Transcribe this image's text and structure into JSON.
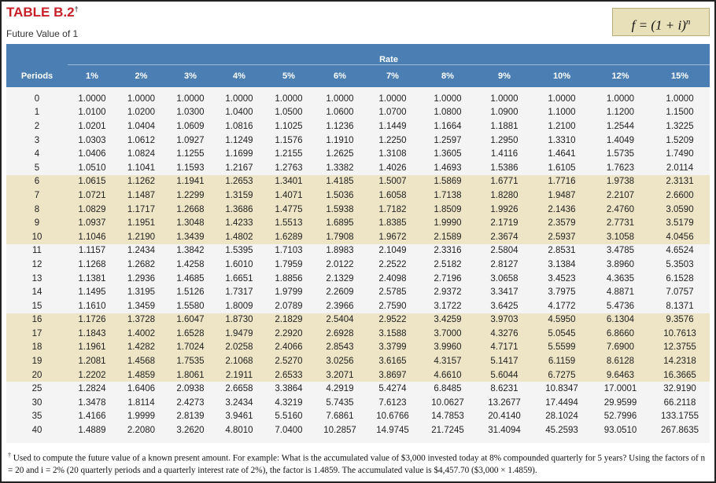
{
  "header": {
    "title": "TABLE B.2",
    "title_mark": "†",
    "subtitle": "Future Value of 1",
    "formula": {
      "base": "f = (1 + i)",
      "exponent": "n"
    }
  },
  "table": {
    "group_header": "Rate",
    "columns": [
      "Periods",
      "1%",
      "2%",
      "3%",
      "4%",
      "5%",
      "6%",
      "7%",
      "8%",
      "9%",
      "10%",
      "12%",
      "15%"
    ],
    "rows": [
      [
        "0",
        "1.0000",
        "1.0000",
        "1.0000",
        "1.0000",
        "1.0000",
        "1.0000",
        "1.0000",
        "1.0000",
        "1.0000",
        "1.0000",
        "1.0000",
        "1.0000"
      ],
      [
        "1",
        "1.0100",
        "1.0200",
        "1.0300",
        "1.0400",
        "1.0500",
        "1.0600",
        "1.0700",
        "1.0800",
        "1.0900",
        "1.1000",
        "1.1200",
        "1.1500"
      ],
      [
        "2",
        "1.0201",
        "1.0404",
        "1.0609",
        "1.0816",
        "1.1025",
        "1.1236",
        "1.1449",
        "1.1664",
        "1.1881",
        "1.2100",
        "1.2544",
        "1.3225"
      ],
      [
        "3",
        "1.0303",
        "1.0612",
        "1.0927",
        "1.1249",
        "1.1576",
        "1.1910",
        "1.2250",
        "1.2597",
        "1.2950",
        "1.3310",
        "1.4049",
        "1.5209"
      ],
      [
        "4",
        "1.0406",
        "1.0824",
        "1.1255",
        "1.1699",
        "1.2155",
        "1.2625",
        "1.3108",
        "1.3605",
        "1.4116",
        "1.4641",
        "1.5735",
        "1.7490"
      ],
      [
        "5",
        "1.0510",
        "1.1041",
        "1.1593",
        "1.2167",
        "1.2763",
        "1.3382",
        "1.4026",
        "1.4693",
        "1.5386",
        "1.6105",
        "1.7623",
        "2.0114"
      ],
      [
        "6",
        "1.0615",
        "1.1262",
        "1.1941",
        "1.2653",
        "1.3401",
        "1.4185",
        "1.5007",
        "1.5869",
        "1.6771",
        "1.7716",
        "1.9738",
        "2.3131"
      ],
      [
        "7",
        "1.0721",
        "1.1487",
        "1.2299",
        "1.3159",
        "1.4071",
        "1.5036",
        "1.6058",
        "1.7138",
        "1.8280",
        "1.9487",
        "2.2107",
        "2.6600"
      ],
      [
        "8",
        "1.0829",
        "1.1717",
        "1.2668",
        "1.3686",
        "1.4775",
        "1.5938",
        "1.7182",
        "1.8509",
        "1.9926",
        "2.1436",
        "2.4760",
        "3.0590"
      ],
      [
        "9",
        "1.0937",
        "1.1951",
        "1.3048",
        "1.4233",
        "1.5513",
        "1.6895",
        "1.8385",
        "1.9990",
        "2.1719",
        "2.3579",
        "2.7731",
        "3.5179"
      ],
      [
        "10",
        "1.1046",
        "1.2190",
        "1.3439",
        "1.4802",
        "1.6289",
        "1.7908",
        "1.9672",
        "2.1589",
        "2.3674",
        "2.5937",
        "3.1058",
        "4.0456"
      ],
      [
        "11",
        "1.1157",
        "1.2434",
        "1.3842",
        "1.5395",
        "1.7103",
        "1.8983",
        "2.1049",
        "2.3316",
        "2.5804",
        "2.8531",
        "3.4785",
        "4.6524"
      ],
      [
        "12",
        "1.1268",
        "1.2682",
        "1.4258",
        "1.6010",
        "1.7959",
        "2.0122",
        "2.2522",
        "2.5182",
        "2.8127",
        "3.1384",
        "3.8960",
        "5.3503"
      ],
      [
        "13",
        "1.1381",
        "1.2936",
        "1.4685",
        "1.6651",
        "1.8856",
        "2.1329",
        "2.4098",
        "2.7196",
        "3.0658",
        "3.4523",
        "4.3635",
        "6.1528"
      ],
      [
        "14",
        "1.1495",
        "1.3195",
        "1.5126",
        "1.7317",
        "1.9799",
        "2.2609",
        "2.5785",
        "2.9372",
        "3.3417",
        "3.7975",
        "4.8871",
        "7.0757"
      ],
      [
        "15",
        "1.1610",
        "1.3459",
        "1.5580",
        "1.8009",
        "2.0789",
        "2.3966",
        "2.7590",
        "3.1722",
        "3.6425",
        "4.1772",
        "5.4736",
        "8.1371"
      ],
      [
        "16",
        "1.1726",
        "1.3728",
        "1.6047",
        "1.8730",
        "2.1829",
        "2.5404",
        "2.9522",
        "3.4259",
        "3.9703",
        "4.5950",
        "6.1304",
        "9.3576"
      ],
      [
        "17",
        "1.1843",
        "1.4002",
        "1.6528",
        "1.9479",
        "2.2920",
        "2.6928",
        "3.1588",
        "3.7000",
        "4.3276",
        "5.0545",
        "6.8660",
        "10.7613"
      ],
      [
        "18",
        "1.1961",
        "1.4282",
        "1.7024",
        "2.0258",
        "2.4066",
        "2.8543",
        "3.3799",
        "3.9960",
        "4.7171",
        "5.5599",
        "7.6900",
        "12.3755"
      ],
      [
        "19",
        "1.2081",
        "1.4568",
        "1.7535",
        "2.1068",
        "2.5270",
        "3.0256",
        "3.6165",
        "4.3157",
        "5.1417",
        "6.1159",
        "8.6128",
        "14.2318"
      ],
      [
        "20",
        "1.2202",
        "1.4859",
        "1.8061",
        "2.1911",
        "2.6533",
        "3.2071",
        "3.8697",
        "4.6610",
        "5.6044",
        "6.7275",
        "9.6463",
        "16.3665"
      ],
      [
        "25",
        "1.2824",
        "1.6406",
        "2.0938",
        "2.6658",
        "3.3864",
        "4.2919",
        "5.4274",
        "6.8485",
        "8.6231",
        "10.8347",
        "17.0001",
        "32.9190"
      ],
      [
        "30",
        "1.3478",
        "1.8114",
        "2.4273",
        "3.2434",
        "4.3219",
        "5.7435",
        "7.6123",
        "10.0627",
        "13.2677",
        "17.4494",
        "29.9599",
        "66.2118"
      ],
      [
        "35",
        "1.4166",
        "1.9999",
        "2.8139",
        "3.9461",
        "5.5160",
        "7.6861",
        "10.6766",
        "14.7853",
        "20.4140",
        "28.1024",
        "52.7996",
        "133.1755"
      ],
      [
        "40",
        "1.4889",
        "2.2080",
        "3.2620",
        "4.8010",
        "7.0400",
        "10.2857",
        "14.9745",
        "21.7245",
        "31.4094",
        "45.2593",
        "93.0510",
        "267.8635"
      ]
    ]
  },
  "footnote": {
    "mark": "†",
    "text": "Used to compute the future value of a known present amount. For example: What is the accumulated value of $3,000 invested today at 8% compounded quarterly for 5 years? Using the factors of n = 20 and i = 2% (20 quarterly periods and a quarterly interest rate of 2%), the factor is 1.4859. The accumulated value is $4,457.70 ($3,000 × 1.4859)."
  }
}
